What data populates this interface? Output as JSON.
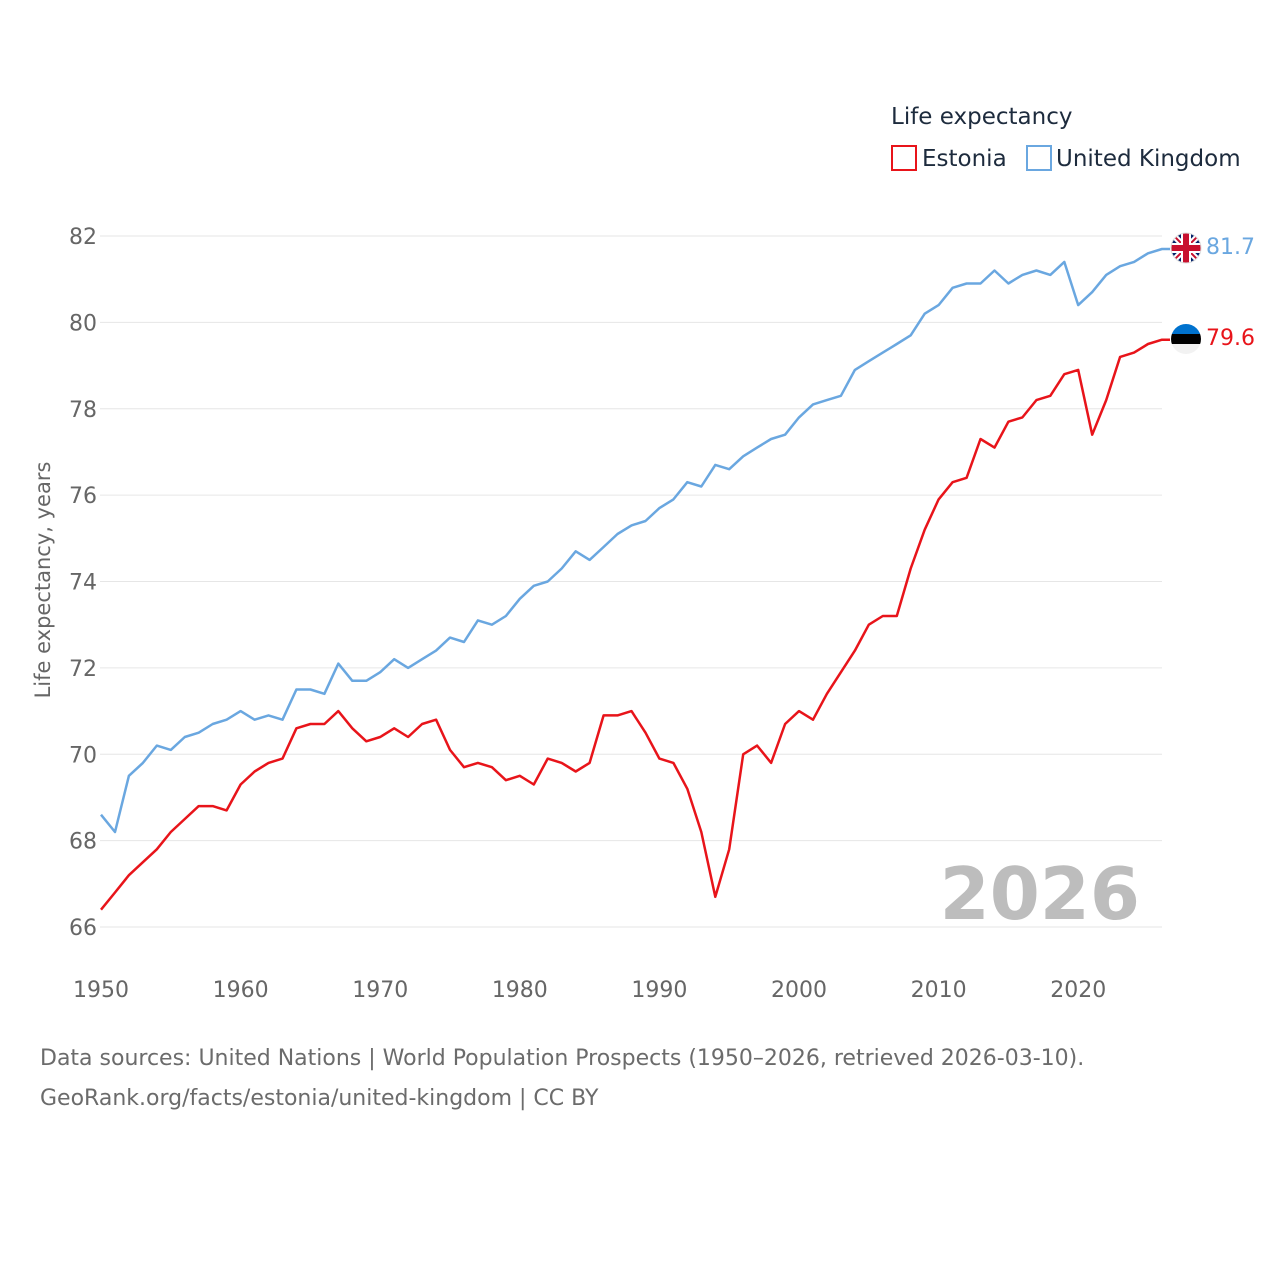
{
  "chart_data": {
    "type": "line",
    "ylabel": "Life expectancy, years",
    "xlabel": "",
    "legend_title": "Life expectancy",
    "legend_position": "top-right",
    "year_watermark": "2026",
    "xlim": [
      1950,
      2026
    ],
    "ylim": [
      65.5,
      82.3
    ],
    "x_ticks": [
      1950,
      1960,
      1970,
      1980,
      1990,
      2000,
      2010,
      2020
    ],
    "y_ticks": [
      66,
      68,
      70,
      72,
      74,
      76,
      78,
      80,
      82
    ],
    "x": [
      1950,
      1951,
      1952,
      1953,
      1954,
      1955,
      1956,
      1957,
      1958,
      1959,
      1960,
      1961,
      1962,
      1963,
      1964,
      1965,
      1966,
      1967,
      1968,
      1969,
      1970,
      1971,
      1972,
      1973,
      1974,
      1975,
      1976,
      1977,
      1978,
      1979,
      1980,
      1981,
      1982,
      1983,
      1984,
      1985,
      1986,
      1987,
      1988,
      1989,
      1990,
      1991,
      1992,
      1993,
      1994,
      1995,
      1996,
      1997,
      1998,
      1999,
      2000,
      2001,
      2002,
      2003,
      2004,
      2005,
      2006,
      2007,
      2008,
      2009,
      2010,
      2011,
      2012,
      2013,
      2014,
      2015,
      2016,
      2017,
      2018,
      2019,
      2020,
      2021,
      2022,
      2023,
      2024,
      2025,
      2026
    ],
    "series": [
      {
        "name": "Estonia",
        "color": "#e8141a",
        "flag": "estonia-flag",
        "end_label": "79.6",
        "values": [
          66.4,
          66.8,
          67.2,
          67.5,
          67.8,
          68.2,
          68.5,
          68.8,
          68.8,
          68.7,
          69.3,
          69.6,
          69.8,
          69.9,
          70.6,
          70.7,
          70.7,
          71.0,
          70.6,
          70.3,
          70.4,
          70.6,
          70.4,
          70.7,
          70.8,
          70.1,
          69.7,
          69.8,
          69.7,
          69.4,
          69.5,
          69.3,
          69.9,
          69.8,
          69.6,
          69.8,
          70.9,
          70.9,
          71.0,
          70.5,
          69.9,
          69.8,
          69.2,
          68.2,
          66.7,
          67.8,
          70.0,
          70.2,
          69.8,
          70.7,
          71.0,
          70.8,
          71.4,
          71.9,
          72.4,
          73.0,
          73.2,
          73.2,
          74.3,
          75.2,
          75.9,
          76.3,
          76.4,
          77.3,
          77.1,
          77.7,
          77.8,
          78.2,
          78.3,
          78.8,
          78.9,
          77.4,
          78.2,
          79.2,
          79.3,
          79.5,
          79.6
        ]
      },
      {
        "name": "United Kingdom",
        "color": "#6aa7e0",
        "flag": "united-kingdom-flag",
        "end_label": "81.7",
        "values": [
          68.6,
          68.2,
          69.5,
          69.8,
          70.2,
          70.1,
          70.4,
          70.5,
          70.7,
          70.8,
          71.0,
          70.8,
          70.9,
          70.8,
          71.5,
          71.5,
          71.4,
          72.1,
          71.7,
          71.7,
          71.9,
          72.2,
          72.0,
          72.2,
          72.4,
          72.7,
          72.6,
          73.1,
          73.0,
          73.2,
          73.6,
          73.9,
          74.0,
          74.3,
          74.7,
          74.5,
          74.8,
          75.1,
          75.3,
          75.4,
          75.7,
          75.9,
          76.3,
          76.2,
          76.7,
          76.6,
          76.9,
          77.1,
          77.3,
          77.4,
          77.8,
          78.1,
          78.2,
          78.3,
          78.9,
          79.1,
          79.3,
          79.5,
          79.7,
          80.2,
          80.4,
          80.8,
          80.9,
          80.9,
          81.2,
          80.9,
          81.1,
          81.2,
          81.1,
          81.4,
          80.4,
          80.7,
          81.1,
          81.3,
          81.4,
          81.6,
          81.7
        ]
      }
    ]
  },
  "footer": {
    "sources": "Data sources: United Nations | World Population Prospects (1950–2026, retrieved 2026-03-10).",
    "link": "GeoRank.org/facts/estonia/united-kingdom | CC BY"
  }
}
